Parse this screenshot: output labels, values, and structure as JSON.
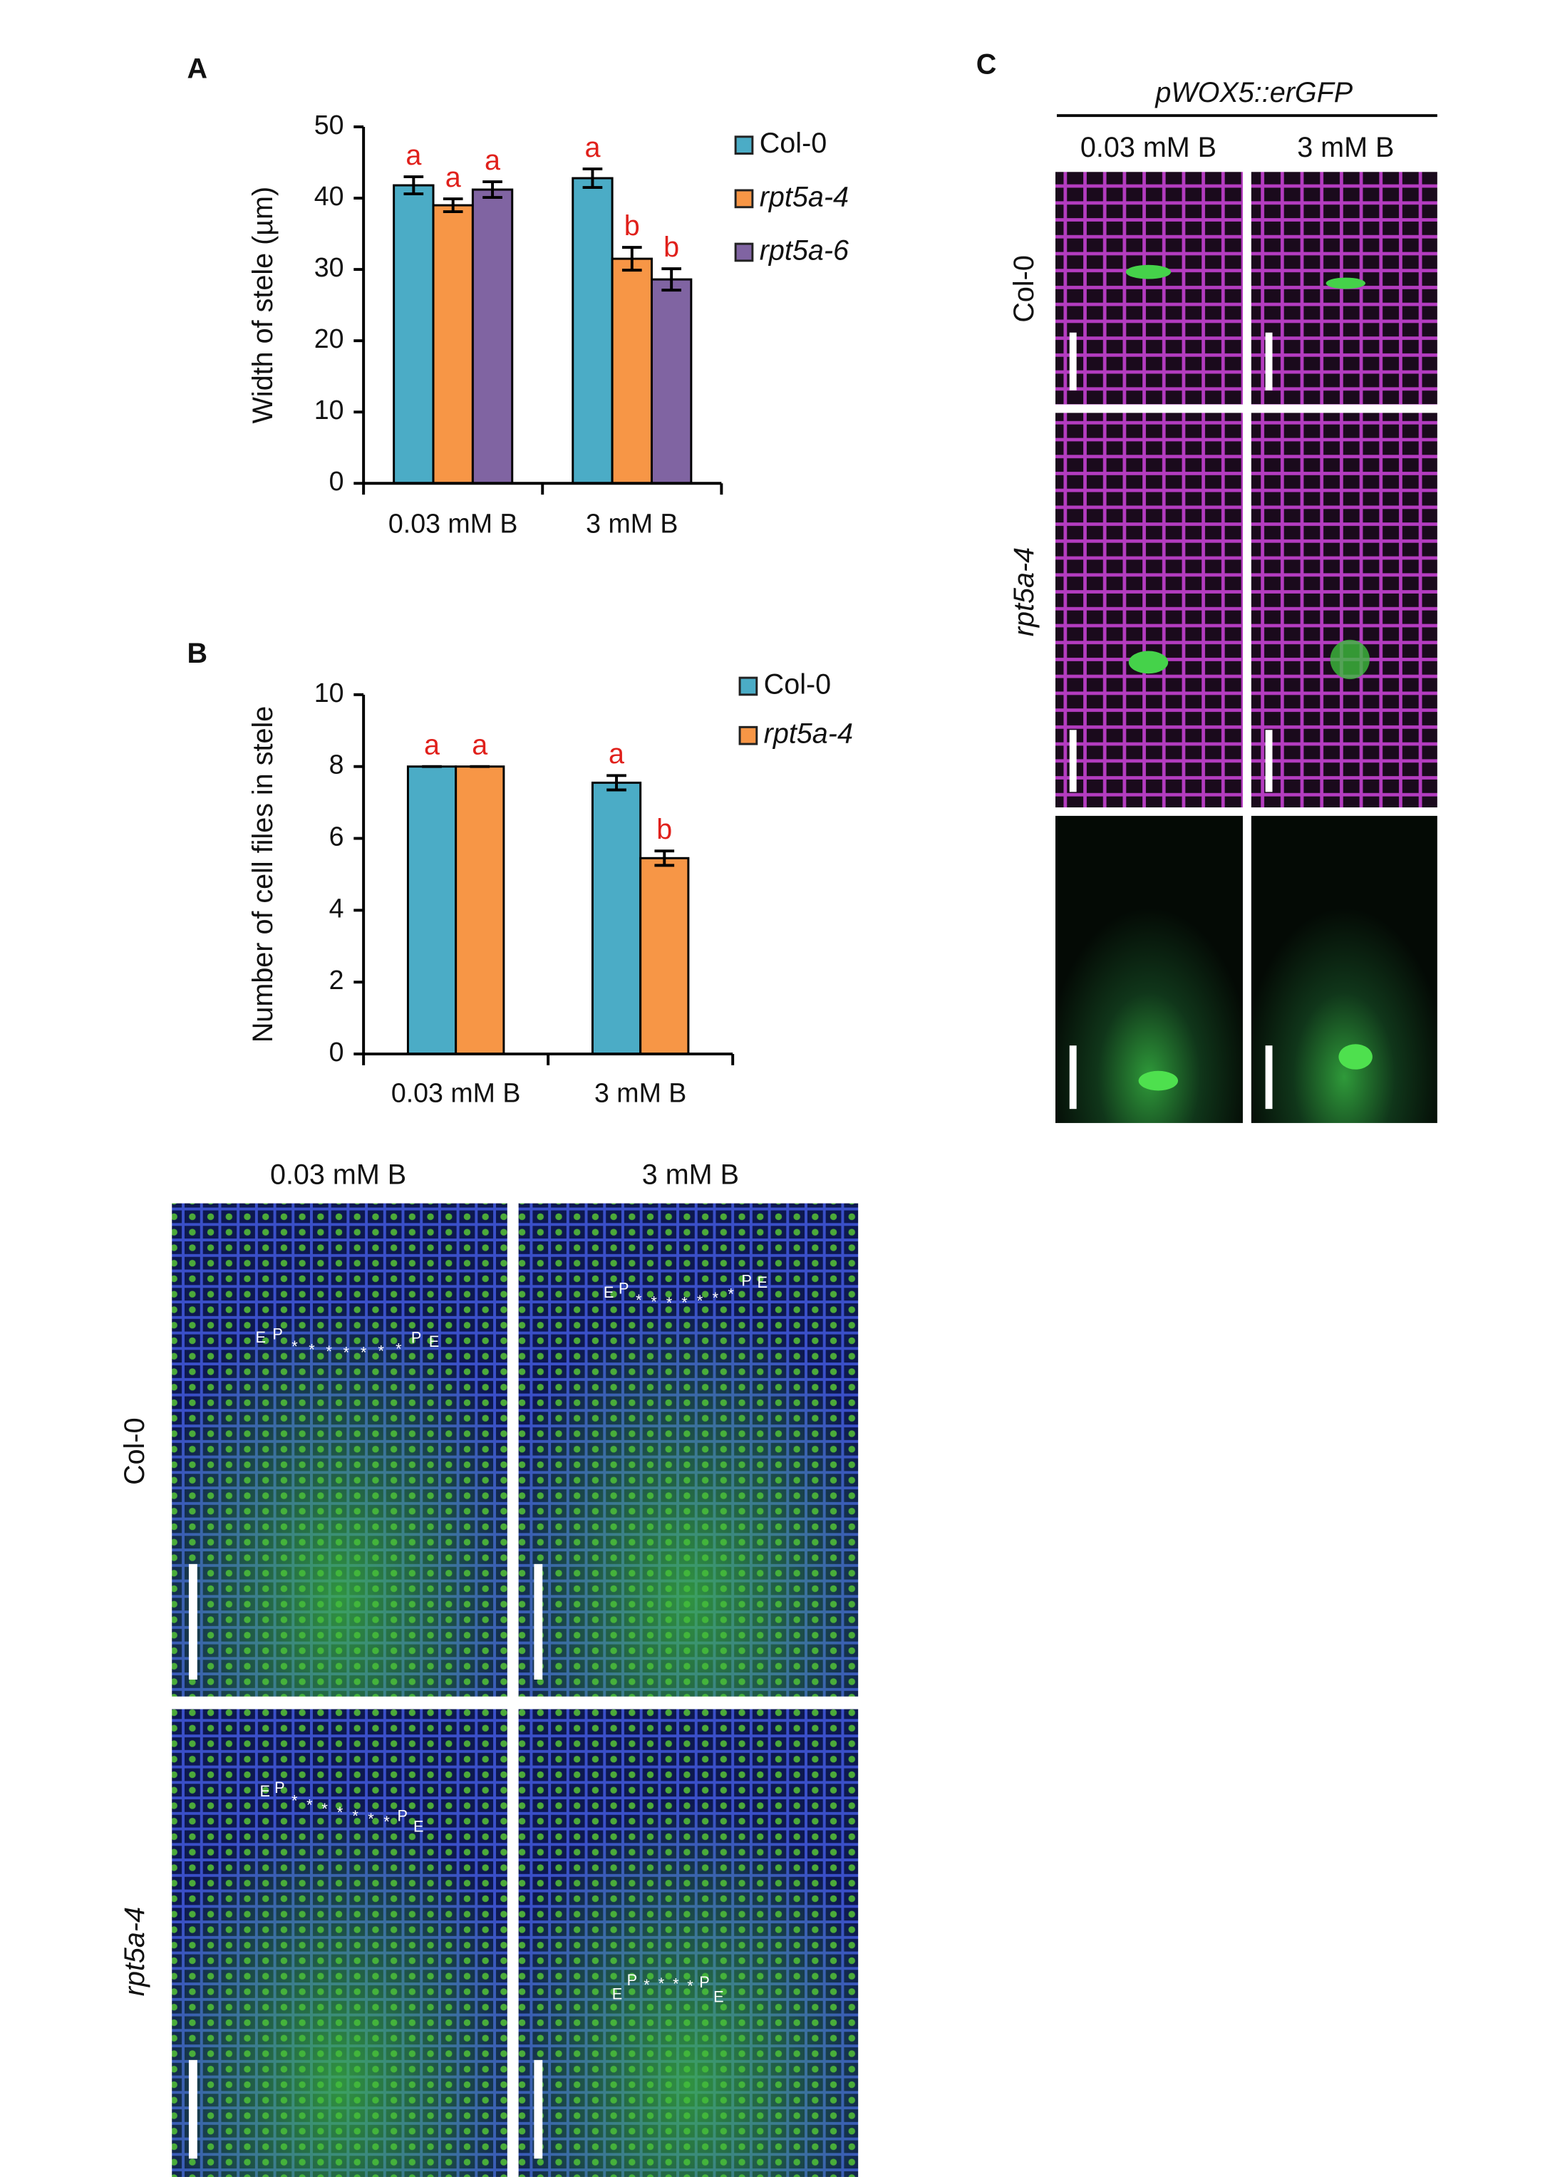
{
  "chart_data": [
    {
      "type": "bar",
      "panel_label": "A",
      "y_label": "Width of stele (µm)",
      "categories": [
        "0.03 mM B",
        "3 mM B"
      ],
      "series": [
        {
          "name": "Col-0",
          "color": "#4bacc6",
          "font_style": "normal",
          "values": [
            41.8,
            42.8
          ],
          "errors": [
            1.2,
            1.3
          ],
          "annotations": [
            "a",
            "a"
          ]
        },
        {
          "name": "rpt5a-4",
          "color": "#f79646",
          "font_style": "italic",
          "values": [
            39,
            31.5
          ],
          "errors": [
            0.9,
            1.6
          ],
          "annotations": [
            "a",
            "b"
          ]
        },
        {
          "name": "rpt5a-6",
          "color": "#8064a2",
          "font_style": "italic",
          "values": [
            41.2,
            28.6
          ],
          "errors": [
            1.1,
            1.5
          ],
          "annotations": [
            "a",
            "b"
          ]
        }
      ],
      "ylim": [
        0,
        50
      ],
      "yticks": [
        0,
        10,
        20,
        30,
        40,
        50
      ],
      "grid": false,
      "legend": "right"
    },
    {
      "type": "bar",
      "panel_label": "B",
      "y_label": "Number of cell files in stele",
      "categories": [
        "0.03 mM B",
        "3 mM B"
      ],
      "series": [
        {
          "name": "Col-0",
          "color": "#4bacc6",
          "font_style": "normal",
          "values": [
            8,
            7.55
          ],
          "errors": [
            0,
            0.2
          ],
          "annotations": [
            "a",
            "a"
          ]
        },
        {
          "name": "rpt5a-4",
          "color": "#f79646",
          "font_style": "italic",
          "values": [
            8,
            5.45
          ],
          "errors": [
            0,
            0.2
          ],
          "annotations": [
            "a",
            "b"
          ]
        }
      ],
      "ylim": [
        0,
        10
      ],
      "yticks": [
        0,
        2,
        4,
        6,
        8,
        10
      ],
      "grid": false,
      "legend": "right"
    }
  ],
  "panel_c": {
    "panel_label": "C",
    "title": "pWOX5::erGFP",
    "columns": [
      "0.03 mM B",
      "3 mM B"
    ],
    "rows": [
      "Col-0",
      "rpt5a-4"
    ]
  },
  "panel_bottom": {
    "columns": [
      "0.03 mM B",
      "3 mM B"
    ],
    "rows": [
      "Col-0",
      "rpt5a-4"
    ],
    "markers": [
      [
        "E",
        "P",
        "*",
        "*",
        "*",
        "*",
        "*",
        "*",
        "*",
        "P",
        "E"
      ],
      [
        "E",
        "P",
        "*",
        "*",
        "*",
        "*",
        "*",
        "*",
        "*",
        "P",
        "E"
      ],
      [
        "E",
        "P",
        "*",
        "*",
        "*",
        "*",
        "*",
        "*",
        "*",
        "P",
        "E"
      ],
      [
        "E",
        "P",
        "*",
        "*",
        "*",
        "*",
        "P",
        "E"
      ]
    ]
  }
}
